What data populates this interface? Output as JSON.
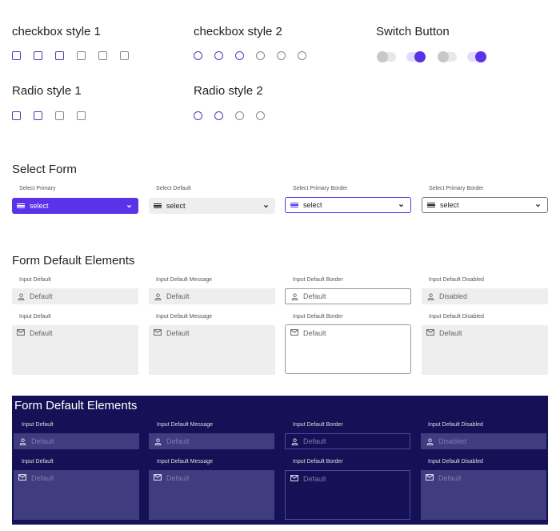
{
  "checkbox_style1": {
    "title": "checkbox style 1",
    "checked": [
      true,
      true,
      true,
      false,
      false,
      false
    ]
  },
  "checkbox_style2": {
    "title": "checkbox style 2",
    "checked": [
      true,
      true,
      true,
      false,
      false,
      false
    ]
  },
  "switch": {
    "title": "Switch Button",
    "states": [
      false,
      true,
      false,
      true
    ]
  },
  "radio_style1": {
    "title": "Radio style 1",
    "checked": [
      true,
      true,
      false,
      false
    ]
  },
  "radio_style2": {
    "title": "Radio style 2",
    "checked": [
      true,
      true,
      false,
      false
    ]
  },
  "select_form": {
    "title": "Select Form",
    "items": [
      {
        "label": "Select Primary",
        "value": "select"
      },
      {
        "label": "Select Default",
        "value": "select"
      },
      {
        "label": "Select Primary Border",
        "value": "select"
      },
      {
        "label": "Select Primary Border",
        "value": "select"
      }
    ]
  },
  "form_default": {
    "title": "Form Default Elements",
    "inputs": [
      {
        "label": "Input Default",
        "value": "Default"
      },
      {
        "label": "Input Default Message",
        "value": "Default"
      },
      {
        "label": "Input Default Border",
        "value": "Default"
      },
      {
        "label": "Input Default Disabled",
        "value": "Disabled"
      }
    ],
    "textareas": [
      {
        "label": "Input Default",
        "value": "Default"
      },
      {
        "label": "Input Default Message",
        "value": "Default"
      },
      {
        "label": "Input Default Border",
        "value": "Default"
      },
      {
        "label": "Input Default Disabled",
        "value": "Default"
      }
    ]
  },
  "form_dark": {
    "title": "Form Default Elements",
    "inputs": [
      {
        "label": "Input Default",
        "placeholder": "Default"
      },
      {
        "label": "Input Default Message",
        "placeholder": "Default"
      },
      {
        "label": "Input Default Border",
        "placeholder": "Default"
      },
      {
        "label": "Input Default Disabled",
        "placeholder": "Disabled"
      }
    ],
    "textareas": [
      {
        "label": "Input Default",
        "placeholder": "Default"
      },
      {
        "label": "Input Default Message",
        "placeholder": "Default"
      },
      {
        "label": "Input Default Border",
        "placeholder": "Default"
      },
      {
        "label": "Input Default Disabled",
        "placeholder": "Default"
      }
    ]
  },
  "colors": {
    "primary": "#5a33e8",
    "checked_border": "#4a3fb6",
    "dark_panel": "#161157",
    "dark_field": "#3f3c7f"
  },
  "icons": {
    "select": "menu-icon",
    "dropdown": "chevron-down-icon",
    "input": "user-icon",
    "textarea": "mail-icon"
  }
}
